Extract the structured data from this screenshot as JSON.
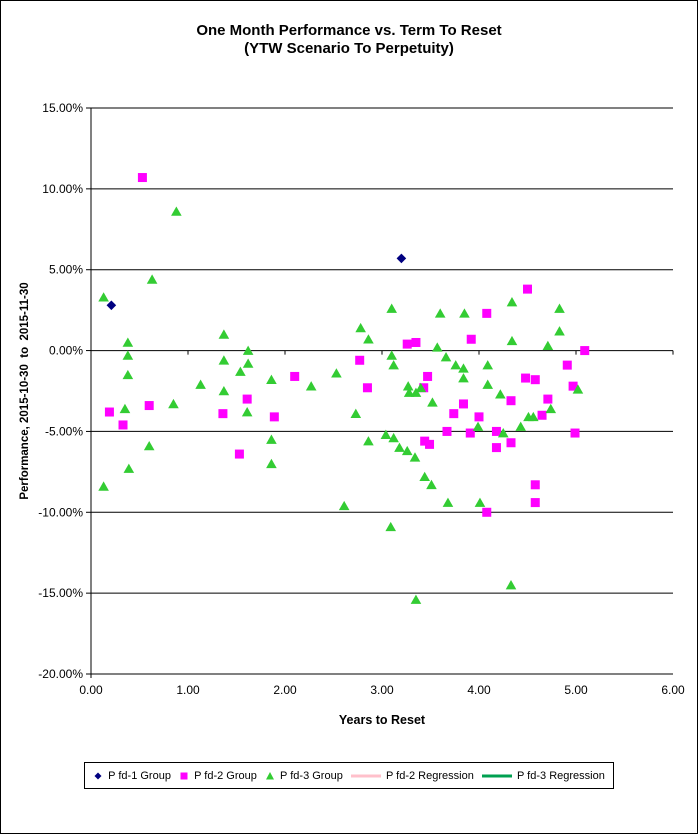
{
  "chart_data": {
    "type": "scatter",
    "title": "One Month Performance vs. Term To Reset",
    "subtitle": "(YTW Scenario To Perpetuity)",
    "xlabel": "Years to Reset",
    "ylabel": "Performance, 2015-10-30  to  2015-11-30",
    "xlim": [
      0,
      6
    ],
    "ylim": [
      -20,
      15
    ],
    "grid": "horizontal",
    "legend_position": "bottom",
    "x_axis": {
      "tick_values": [
        0,
        1,
        2,
        3,
        4,
        5,
        6
      ],
      "tick_labels": [
        "0.00",
        "1.00",
        "2.00",
        "3.00",
        "4.00",
        "5.00",
        "6.00"
      ]
    },
    "y_axis": {
      "tick_values": [
        15,
        10,
        5,
        0,
        -5,
        -10,
        -15,
        -20
      ],
      "tick_labels": [
        "15.00%",
        "10.00%",
        "5.00%",
        "0.00%",
        "-5.00%",
        "-10.00%",
        "-15.00%",
        "-20.00%"
      ]
    },
    "series": [
      {
        "name": "P fd-1 Group",
        "marker": "diamond",
        "color": "#000080",
        "points": [
          [
            0.21,
            2.8
          ],
          [
            3.2,
            5.7
          ]
        ]
      },
      {
        "name": "P fd-2 Group",
        "marker": "square",
        "color": "#FF00FF",
        "points": [
          [
            0.53,
            10.7
          ],
          [
            0.19,
            -3.8
          ],
          [
            0.33,
            -4.6
          ],
          [
            0.6,
            -3.4
          ],
          [
            1.36,
            -3.9
          ],
          [
            1.53,
            -6.4
          ],
          [
            1.61,
            -3.0
          ],
          [
            1.89,
            -4.1
          ],
          [
            2.1,
            -1.6
          ],
          [
            2.77,
            -0.6
          ],
          [
            2.85,
            -2.3
          ],
          [
            3.26,
            0.4
          ],
          [
            3.35,
            0.5
          ],
          [
            3.43,
            -2.3
          ],
          [
            3.47,
            -1.6
          ],
          [
            3.44,
            -5.6
          ],
          [
            3.49,
            -5.8
          ],
          [
            3.67,
            -5.0
          ],
          [
            3.74,
            -3.9
          ],
          [
            3.84,
            -3.3
          ],
          [
            3.91,
            -5.1
          ],
          [
            3.92,
            0.7
          ],
          [
            4.0,
            -4.1
          ],
          [
            4.08,
            2.3
          ],
          [
            4.08,
            -10.0
          ],
          [
            4.18,
            -5.0
          ],
          [
            4.18,
            -6.0
          ],
          [
            4.33,
            -3.1
          ],
          [
            4.33,
            -5.7
          ],
          [
            4.48,
            -1.7
          ],
          [
            4.5,
            3.8
          ],
          [
            4.58,
            -1.8
          ],
          [
            4.58,
            -8.3
          ],
          [
            4.58,
            -9.4
          ],
          [
            4.65,
            -4.0
          ],
          [
            4.71,
            -3.0
          ],
          [
            4.91,
            -0.9
          ],
          [
            4.97,
            -2.2
          ],
          [
            4.99,
            -5.1
          ],
          [
            5.09,
            0.0
          ]
        ]
      },
      {
        "name": "P fd-3 Group",
        "marker": "triangle",
        "color": "#33CC33",
        "points": [
          [
            0.13,
            3.3
          ],
          [
            0.63,
            4.4
          ],
          [
            0.88,
            8.6
          ],
          [
            0.38,
            0.5
          ],
          [
            0.38,
            -0.3
          ],
          [
            0.38,
            -1.5
          ],
          [
            0.35,
            -3.6
          ],
          [
            0.6,
            -5.9
          ],
          [
            0.39,
            -7.3
          ],
          [
            0.13,
            -8.4
          ],
          [
            0.85,
            -3.3
          ],
          [
            1.13,
            -2.1
          ],
          [
            1.37,
            1.0
          ],
          [
            1.37,
            -0.6
          ],
          [
            1.37,
            -2.5
          ],
          [
            1.54,
            -1.3
          ],
          [
            1.62,
            0.0
          ],
          [
            1.62,
            -0.8
          ],
          [
            1.61,
            -3.8
          ],
          [
            1.86,
            -1.8
          ],
          [
            1.86,
            -5.5
          ],
          [
            1.86,
            -7.0
          ],
          [
            2.27,
            -2.2
          ],
          [
            2.53,
            -1.4
          ],
          [
            2.61,
            -9.6
          ],
          [
            2.73,
            -3.9
          ],
          [
            2.78,
            1.4
          ],
          [
            2.86,
            0.7
          ],
          [
            2.86,
            -5.6
          ],
          [
            3.04,
            -5.2
          ],
          [
            3.09,
            -10.9
          ],
          [
            3.1,
            2.6
          ],
          [
            3.1,
            -0.3
          ],
          [
            3.12,
            -0.9
          ],
          [
            3.12,
            -5.4
          ],
          [
            3.18,
            -6.0
          ],
          [
            3.26,
            -6.2
          ],
          [
            3.27,
            -2.2
          ],
          [
            3.28,
            -2.6
          ],
          [
            3.34,
            -6.6
          ],
          [
            3.35,
            -2.6
          ],
          [
            3.35,
            -15.4
          ],
          [
            3.4,
            -2.3
          ],
          [
            3.44,
            -7.8
          ],
          [
            3.51,
            -8.3
          ],
          [
            3.52,
            -3.2
          ],
          [
            3.57,
            0.2
          ],
          [
            3.6,
            2.3
          ],
          [
            3.66,
            -0.4
          ],
          [
            3.68,
            -9.4
          ],
          [
            3.76,
            -0.9
          ],
          [
            3.84,
            -1.1
          ],
          [
            3.84,
            -1.7
          ],
          [
            3.85,
            2.3
          ],
          [
            3.99,
            -4.7
          ],
          [
            4.01,
            -9.4
          ],
          [
            4.09,
            -0.9
          ],
          [
            4.09,
            -2.1
          ],
          [
            4.22,
            -2.7
          ],
          [
            4.25,
            -5.1
          ],
          [
            4.33,
            -14.5
          ],
          [
            4.34,
            3.0
          ],
          [
            4.34,
            0.6
          ],
          [
            4.43,
            -4.7
          ],
          [
            4.51,
            -4.1
          ],
          [
            4.56,
            -4.1
          ],
          [
            4.71,
            0.3
          ],
          [
            4.74,
            -3.6
          ],
          [
            4.83,
            2.6
          ],
          [
            4.83,
            1.2
          ],
          [
            5.02,
            -2.4
          ]
        ]
      },
      {
        "name": "P fd-2 Regression",
        "marker": "line",
        "color": "#FFC0CB",
        "points": []
      },
      {
        "name": "P fd-3 Regression",
        "marker": "line",
        "color": "#00A050",
        "points": []
      }
    ]
  }
}
